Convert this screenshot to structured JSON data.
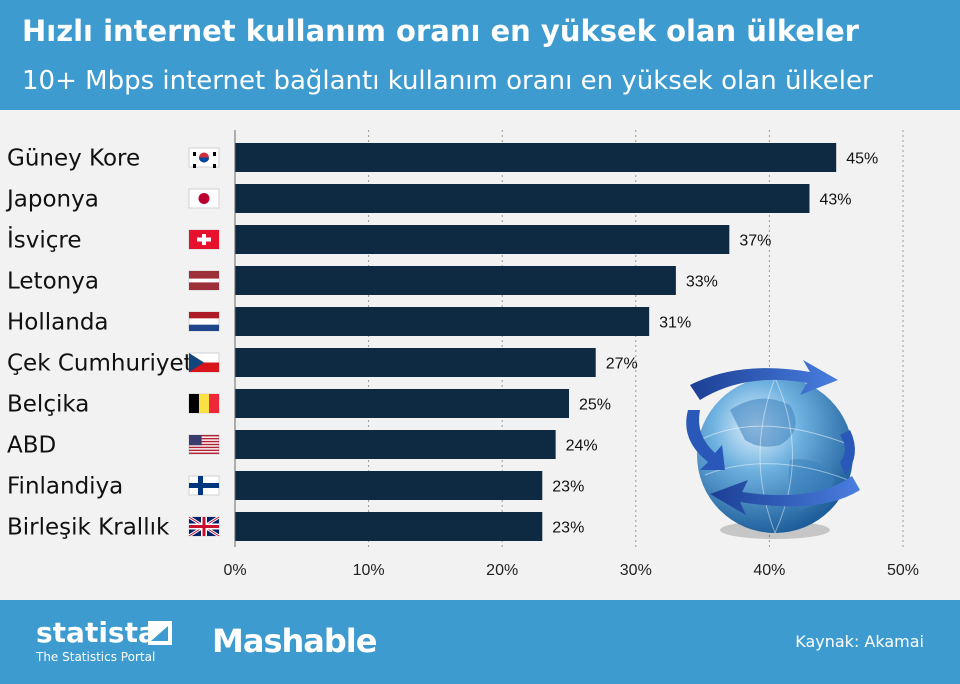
{
  "header": {
    "title": "Hızlı internet kullanım oranı en yüksek olan ülkeler",
    "subtitle": "10+ Mbps internet bağlantı kullanım oranı en yüksek olan ülkeler"
  },
  "footer": {
    "statista_name": "statista",
    "statista_tagline": "The Statistics Portal",
    "mashable_name": "Mashable",
    "source": "Kaynak: Akamai"
  },
  "colors": {
    "header_bg": "#3d9bd0",
    "bar": "#0e2a42",
    "background": "#f2f2f2"
  },
  "chart_data": {
    "type": "bar",
    "orientation": "horizontal",
    "title": "Hızlı internet kullanım oranı en yüksek olan ülkeler",
    "subtitle": "10+ Mbps internet bağlantı kullanım oranı en yüksek olan ülkeler",
    "categories": [
      "Güney Kore",
      "Japonya",
      "İsviçre",
      "Letonya",
      "Hollanda",
      "Çek Cumhuriyeti",
      "Belçika",
      "ABD",
      "Finlandiya",
      "Birleşik Krallık"
    ],
    "values": [
      45,
      43,
      37,
      33,
      31,
      27,
      25,
      24,
      23,
      23
    ],
    "value_labels": [
      "45%",
      "43%",
      "37%",
      "33%",
      "31%",
      "27%",
      "25%",
      "24%",
      "23%",
      "23%"
    ],
    "flags": [
      "south-korea-flag-icon",
      "japan-flag-icon",
      "switzerland-flag-icon",
      "latvia-flag-icon",
      "netherlands-flag-icon",
      "czech-republic-flag-icon",
      "belgium-flag-icon",
      "usa-flag-icon",
      "finland-flag-icon",
      "uk-flag-icon"
    ],
    "xlim": [
      0,
      50
    ],
    "x_ticks": [
      0,
      10,
      20,
      30,
      40,
      50
    ],
    "x_tick_labels": [
      "0%",
      "10%",
      "20%",
      "30%",
      "40%",
      "50%"
    ],
    "grid": "vertical dotted",
    "decoration": "globe-icon"
  }
}
